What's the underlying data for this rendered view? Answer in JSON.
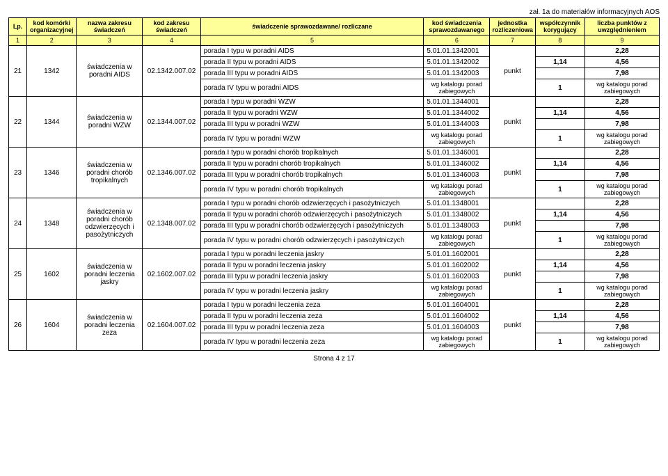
{
  "header_note": "zał. 1a do materiałów informacyjnych AOS",
  "columns": {
    "c1": "Lp.",
    "c2": "kod komórki organizacyjnej",
    "c3": "nazwa zakresu świadczeń",
    "c4": "kod zakresu świadczeń",
    "c5": "świadczenie sprawozdawane/ rozliczane",
    "c6": "kod świadczenia sprawozdawanego",
    "c7": "jednostka rozliczeniowa",
    "c8": "współczynnik korygujący",
    "c9": "liczba punktów z uwzględnieniem"
  },
  "numrow": [
    "1",
    "2",
    "3",
    "4",
    "5",
    "6",
    "7",
    "8",
    "9"
  ],
  "groups": [
    {
      "lp": "21",
      "kk": "1342",
      "nz": "świadczenia w poradni AIDS",
      "kz": "02.1342.007.02",
      "jr": "punkt",
      "rows": [
        {
          "svc": "porada I typu w poradni AIDS",
          "code": "5.01.01.1342001",
          "wk": "",
          "pts": "2,28"
        },
        {
          "svc": "porada II typu w poradni AIDS",
          "code": "5.01.01.1342002",
          "wk": "1,14",
          "pts": "4,56"
        },
        {
          "svc": "porada III typu w poradni AIDS",
          "code": "5.01.01.1342003",
          "wk": "",
          "pts": "7,98"
        },
        {
          "svc": "porada IV typu w poradni AIDS",
          "code": "wg katalogu porad zabiegowych",
          "wk": "1",
          "pts": "wg katalogu porad zabiegowych",
          "katalog": true
        }
      ]
    },
    {
      "lp": "22",
      "kk": "1344",
      "nz": "świadczenia w poradni WZW",
      "kz": "02.1344.007.02",
      "jr": "punkt",
      "rows": [
        {
          "svc": "porada I typu w poradni WZW",
          "code": "5.01.01.1344001",
          "wk": "",
          "pts": "2,28"
        },
        {
          "svc": "porada II typu w poradni WZW",
          "code": "5.01.01.1344002",
          "wk": "1,14",
          "pts": "4,56"
        },
        {
          "svc": "porada III typu w poradni WZW",
          "code": "5.01.01.1344003",
          "wk": "",
          "pts": "7,98"
        },
        {
          "svc": "porada IV typu w poradni WZW",
          "code": "wg katalogu porad zabiegowych",
          "wk": "1",
          "pts": "wg katalogu porad zabiegowych",
          "katalog": true
        }
      ]
    },
    {
      "lp": "23",
      "kk": "1346",
      "nz": "świadczenia w poradni chorób tropikalnych",
      "kz": "02.1346.007.02",
      "jr": "punkt",
      "rows": [
        {
          "svc": "porada I typu w poradni chorób tropikalnych",
          "code": "5.01.01.1346001",
          "wk": "",
          "pts": "2,28"
        },
        {
          "svc": "porada II typu w poradni chorób tropikalnych",
          "code": "5.01.01.1346002",
          "wk": "1,14",
          "pts": "4,56"
        },
        {
          "svc": "porada III typu w poradni chorób tropikalnych",
          "code": "5.01.01.1346003",
          "wk": "",
          "pts": "7,98"
        },
        {
          "svc": "porada IV typu w poradni chorób tropikalnych",
          "code": "wg katalogu porad zabiegowych",
          "wk": "1",
          "pts": "wg katalogu porad zabiegowych",
          "katalog": true
        }
      ]
    },
    {
      "lp": "24",
      "kk": "1348",
      "nz": "świadczenia w poradni chorób odzwierzęcych i pasożytniczych",
      "kz": "02.1348.007.02",
      "jr": "punkt",
      "rows": [
        {
          "svc": "porada I typu w poradni chorób odzwierzęcych i pasożytniczych",
          "code": "5.01.01.1348001",
          "wk": "",
          "pts": "2,28"
        },
        {
          "svc": "porada II typu w poradni chorób odzwierzęcych i pasożytniczych",
          "code": "5.01.01.1348002",
          "wk": "1,14",
          "pts": "4,56"
        },
        {
          "svc": "porada III typu w poradni chorób odzwierzęcych i pasożytniczych",
          "code": "5.01.01.1348003",
          "wk": "",
          "pts": "7,98"
        },
        {
          "svc": "porada IV typu w poradni chorób odzwierzęcych i pasożytniczych",
          "code": "wg katalogu porad zabiegowych",
          "wk": "1",
          "pts": "wg katalogu porad zabiegowych",
          "katalog": true
        }
      ]
    },
    {
      "lp": "25",
      "kk": "1602",
      "nz": "świadczenia w poradni leczenia jaskry",
      "kz": "02.1602.007.02",
      "jr": "punkt",
      "rows": [
        {
          "svc": "porada I typu w poradni leczenia jaskry",
          "code": "5.01.01.1602001",
          "wk": "",
          "pts": "2,28"
        },
        {
          "svc": "porada II typu w poradni leczenia jaskry",
          "code": "5.01.01.1602002",
          "wk": "1,14",
          "pts": "4,56"
        },
        {
          "svc": "porada III typu w poradni leczenia jaskry",
          "code": "5.01.01.1602003",
          "wk": "",
          "pts": "7,98"
        },
        {
          "svc": "porada IV typu w poradni leczenia jaskry",
          "code": "wg katalogu porad zabiegowych",
          "wk": "1",
          "pts": "wg katalogu porad zabiegowych",
          "katalog": true
        }
      ]
    },
    {
      "lp": "26",
      "kk": "1604",
      "nz": "świadczenia w poradni leczenia zeza",
      "kz": "02.1604.007.02",
      "jr": "punkt",
      "rows": [
        {
          "svc": "porada I typu w poradni leczenia zeza",
          "code": "5.01.01.1604001",
          "wk": "",
          "pts": "2,28"
        },
        {
          "svc": "porada II typu w poradni leczenia zeza",
          "code": "5.01.01.1604002",
          "wk": "1,14",
          "pts": "4,56"
        },
        {
          "svc": "porada III typu w poradni leczenia zeza",
          "code": "5.01.01.1604003",
          "wk": "",
          "pts": "7,98"
        },
        {
          "svc": "porada IV typu w poradni leczenia zeza",
          "code": "wg katalogu porad zabiegowych",
          "wk": "1",
          "pts": "wg katalogu porad zabiegowych",
          "katalog": true
        }
      ]
    }
  ],
  "footer": "Strona 4 z 17"
}
